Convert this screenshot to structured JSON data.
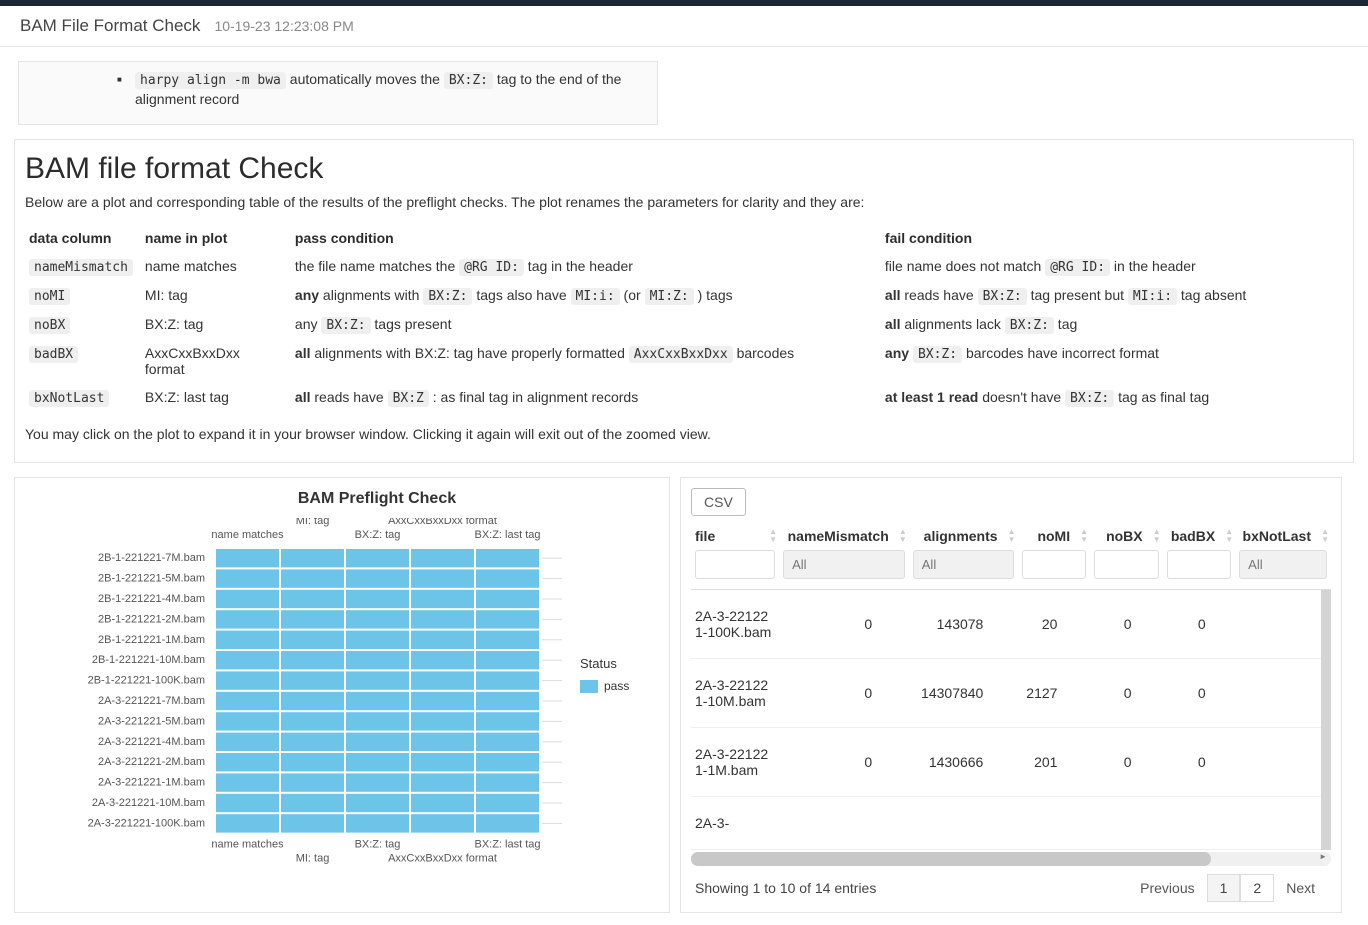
{
  "header": {
    "title": "BAM File Format Check",
    "timestamp": "10-19-23 12:23:08 PM"
  },
  "note": {
    "code": "harpy align -m bwa",
    "text1": " automatically moves the ",
    "code2": "BX:Z:",
    "text2": " tag to the end of the alignment record"
  },
  "section": {
    "title": "BAM file format Check",
    "desc": "Below are a plot and corresponding table of the results of the preflight checks. The plot renames the parameters for clarity and they are:",
    "cols": {
      "data": "data column",
      "plot": "name in plot",
      "pass": "pass condition",
      "fail": "fail condition"
    },
    "rows": [
      {
        "data": "nameMismatch",
        "plot": "name matches",
        "pass_pre": "the file name matches the ",
        "pass_code": "@RG ID:",
        "pass_post": " tag in the header",
        "fail_pre": "file name does not match ",
        "fail_code": "@RG ID:",
        "fail_post": " in the header"
      },
      {
        "data": "noMI",
        "plot": "MI: tag",
        "pass_bold": "any",
        "pass_post1": " alignments with ",
        "pass_code1": "BX:Z:",
        "pass_mid1": " tags also have ",
        "pass_code2": "MI:i:",
        "pass_mid2": " (or ",
        "pass_code3": "MI:Z:",
        "pass_post2": " ) tags",
        "fail_bold": "all",
        "fail_post1": " reads have ",
        "fail_code1": "BX:Z:",
        "fail_mid": " tag present but ",
        "fail_code2": "MI:i:",
        "fail_post2": " tag absent"
      },
      {
        "data": "noBX",
        "plot": "BX:Z: tag",
        "pass_pre": "any ",
        "pass_code": "BX:Z:",
        "pass_post": " tags present",
        "fail_bold": "all",
        "fail_post1": " alignments lack ",
        "fail_code": "BX:Z:",
        "fail_post2": " tag"
      },
      {
        "data": "badBX",
        "plot": "AxxCxxBxxDxx format",
        "pass_bold": "all",
        "pass_post1": " alignments with BX:Z: tag have properly formatted ",
        "pass_code": "AxxCxxBxxDxx",
        "pass_post2": " barcodes",
        "fail_bold": "any ",
        "fail_code": "BX:Z:",
        "fail_post": " barcodes have incorrect format"
      },
      {
        "data": "bxNotLast",
        "plot": "BX:Z: last tag",
        "pass_bold": "all",
        "pass_post1": " reads have ",
        "pass_code": "BX:Z",
        "pass_post2": " : as final tag in alignment records",
        "fail_bold": "at least 1 read",
        "fail_post1": " doesn't have ",
        "fail_code": "BX:Z:",
        "fail_post2": " tag as final tag"
      }
    ],
    "footer_note": "You may click on the plot to expand it in your browser window. Clicking it again will exit out of the zoomed view."
  },
  "chart": {
    "title": "BAM Preflight Check",
    "top_labels": [
      "name matches",
      "MI: tag",
      "BX:Z: tag",
      "AxxCxxBxxDxx format",
      "BX:Z: last tag"
    ],
    "bottom_labels": [
      "name matches",
      "MI: tag",
      "BX:Z: tag",
      "AxxCxxBxxDxx format",
      "BX:Z: last tag"
    ],
    "y_labels": [
      "2B-1-221221-7M.bam",
      "2B-1-221221-5M.bam",
      "2B-1-221221-4M.bam",
      "2B-1-221221-2M.bam",
      "2B-1-221221-1M.bam",
      "2B-1-221221-10M.bam",
      "2B-1-221221-100K.bam",
      "2A-3-221221-7M.bam",
      "2A-3-221221-5M.bam",
      "2A-3-221221-4M.bam",
      "2A-3-221221-2M.bam",
      "2A-3-221221-1M.bam",
      "2A-3-221221-10M.bam",
      "2A-3-221221-100K.bam"
    ],
    "legend_title": "Status",
    "legend_item": "pass",
    "color": "#6cc4e8",
    "bg": "#ffffff",
    "label_color": "#555555",
    "label_fontsize": 11
  },
  "table": {
    "csv_label": "CSV",
    "headers": [
      "file",
      "nameMismatch",
      "alignments",
      "noMI",
      "noBX",
      "badBX",
      "bxNotLast"
    ],
    "filters": [
      "",
      "All",
      "All",
      "",
      "",
      "",
      "All"
    ],
    "rows": [
      {
        "file": "2A-3-221221-100K.bam",
        "nameMismatch": "0",
        "alignments": "143078",
        "noMI": "20",
        "noBX": "0",
        "badBX": "0"
      },
      {
        "file": "2A-3-221221-10M.bam",
        "nameMismatch": "0",
        "alignments": "14307840",
        "noMI": "2127",
        "noBX": "0",
        "badBX": "0"
      },
      {
        "file": "2A-3-221221-1M.bam",
        "nameMismatch": "0",
        "alignments": "1430666",
        "noMI": "201",
        "noBX": "0",
        "badBX": "0"
      },
      {
        "file": "2A-3-",
        "nameMismatch": "",
        "alignments": "",
        "noMI": "",
        "noBX": "",
        "badBX": ""
      }
    ],
    "showing": "Showing 1 to 10 of 14 entries",
    "prev": "Previous",
    "next": "Next",
    "page1": "1",
    "page2": "2"
  }
}
